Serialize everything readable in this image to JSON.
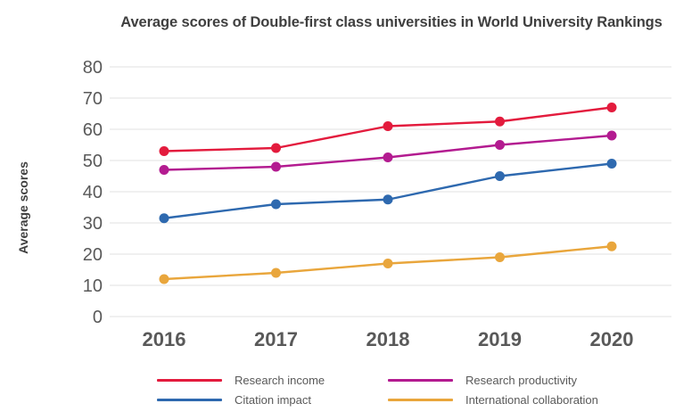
{
  "chart_data": {
    "type": "line",
    "title": "Average scores of Double-first class universities in World University Rankings",
    "xlabel": "",
    "ylabel": "Average scores",
    "categories": [
      "2016",
      "2017",
      "2018",
      "2019",
      "2020"
    ],
    "series": [
      {
        "name": "Research income",
        "color": "#e31b3d",
        "values": [
          53,
          54,
          61,
          62.5,
          67
        ]
      },
      {
        "name": "Research productivity",
        "color": "#b31b90",
        "values": [
          47,
          48,
          51,
          55,
          58
        ]
      },
      {
        "name": "Citation impact",
        "color": "#2e69af",
        "values": [
          31.5,
          36,
          37.5,
          45,
          49
        ]
      },
      {
        "name": "International collaboration",
        "color": "#e9a63c",
        "values": [
          12,
          14,
          17,
          19,
          22.5
        ]
      }
    ],
    "ylim": [
      0,
      80
    ],
    "ytick_step": 10,
    "yticks": [
      0,
      10,
      20,
      30,
      40,
      50,
      60,
      70,
      80
    ],
    "grid": "horizontal",
    "marker": "circle",
    "legend_position": "bottom",
    "legend_columns": 2,
    "legend_order": [
      "Research income",
      "Research productivity",
      "Citation impact",
      "International collaboration"
    ]
  },
  "style": {
    "background": "#ffffff",
    "grid_color": "#e8e8e8",
    "tick_color": "#595959",
    "title_color": "#3f3f3f",
    "axis_title_color": "#3f3f3f",
    "legend_text_color": "#595959"
  }
}
